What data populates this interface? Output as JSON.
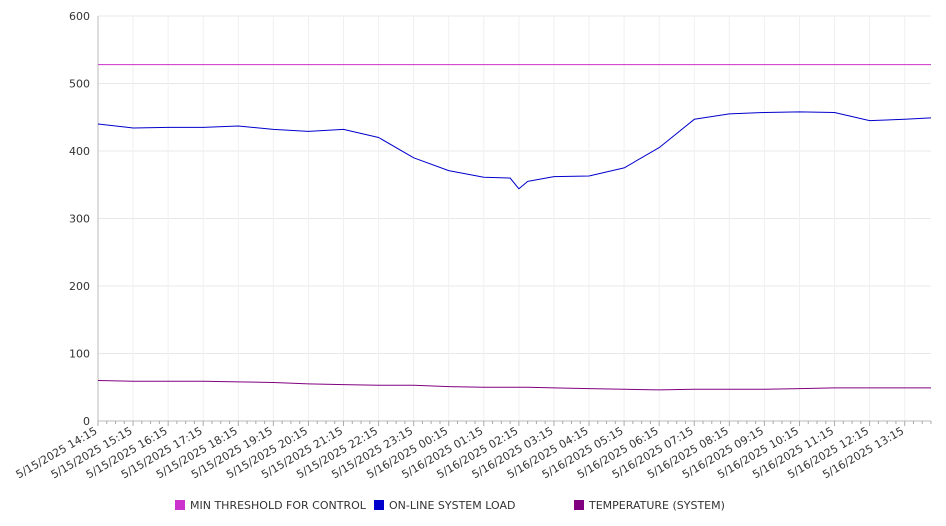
{
  "chart_data": {
    "type": "line",
    "title": "",
    "xlabel": "",
    "ylabel": "",
    "ylim": [
      0,
      600
    ],
    "y_ticks": [
      0,
      100,
      200,
      300,
      400,
      500,
      600
    ],
    "grid": true,
    "legend_position": "bottom",
    "x_tick_labels": [
      "5/15/2025 14:15",
      "5/15/2025 15:15",
      "5/15/2025 16:15",
      "5/15/2025 17:15",
      "5/15/2025 18:15",
      "5/15/2025 19:15",
      "5/15/2025 20:15",
      "5/15/2025 21:15",
      "5/15/2025 22:15",
      "5/15/2025 23:15",
      "5/16/2025 00:15",
      "5/16/2025 01:15",
      "5/16/2025 02:15",
      "5/16/2025 03:15",
      "5/16/2025 04:15",
      "5/16/2025 05:15",
      "5/16/2025 06:15",
      "5/16/2025 07:15",
      "5/16/2025 08:15",
      "5/16/2025 09:15",
      "5/16/2025 10:15",
      "5/16/2025 11:15",
      "5/16/2025 12:15",
      "5/16/2025 13:15"
    ],
    "x": [
      "5/15/2025 14:15",
      "5/15/2025 15:15",
      "5/15/2025 16:15",
      "5/15/2025 17:15",
      "5/15/2025 18:15",
      "5/15/2025 19:15",
      "5/15/2025 20:15",
      "5/15/2025 21:15",
      "5/15/2025 22:15",
      "5/15/2025 23:15",
      "5/16/2025 00:15",
      "5/16/2025 01:15",
      "5/16/2025 02:00",
      "5/16/2025 02:15",
      "5/16/2025 02:30",
      "5/16/2025 03:15",
      "5/16/2025 04:15",
      "5/16/2025 05:15",
      "5/16/2025 06:15",
      "5/16/2025 07:15",
      "5/16/2025 08:15",
      "5/16/2025 09:15",
      "5/16/2025 10:15",
      "5/16/2025 11:15",
      "5/16/2025 12:15",
      "5/16/2025 13:15",
      "5/16/2025 14:00"
    ],
    "series": [
      {
        "name": "MIN THRESHOLD FOR CONTROL",
        "color": "#cc33cc",
        "values": [
          528,
          528,
          528,
          528,
          528,
          528,
          528,
          528,
          528,
          528,
          528,
          528,
          528,
          528,
          528,
          528,
          528,
          528,
          528,
          528,
          528,
          528,
          528,
          528,
          528,
          528,
          528
        ]
      },
      {
        "name": "ON-LINE SYSTEM LOAD",
        "color": "#0000cc",
        "values": [
          440,
          434,
          435,
          435,
          437,
          432,
          429,
          432,
          420,
          390,
          371,
          361,
          360,
          344,
          355,
          362,
          363,
          375,
          405,
          447,
          455,
          457,
          458,
          457,
          445,
          447,
          449
        ]
      },
      {
        "name": "TEMPERATURE (SYSTEM)",
        "color": "#800080",
        "values": [
          60,
          59,
          59,
          59,
          58,
          57,
          55,
          54,
          53,
          53,
          51,
          50,
          50,
          50,
          50,
          49,
          48,
          47,
          46,
          47,
          47,
          47,
          48,
          49,
          49,
          49,
          49
        ]
      }
    ]
  }
}
